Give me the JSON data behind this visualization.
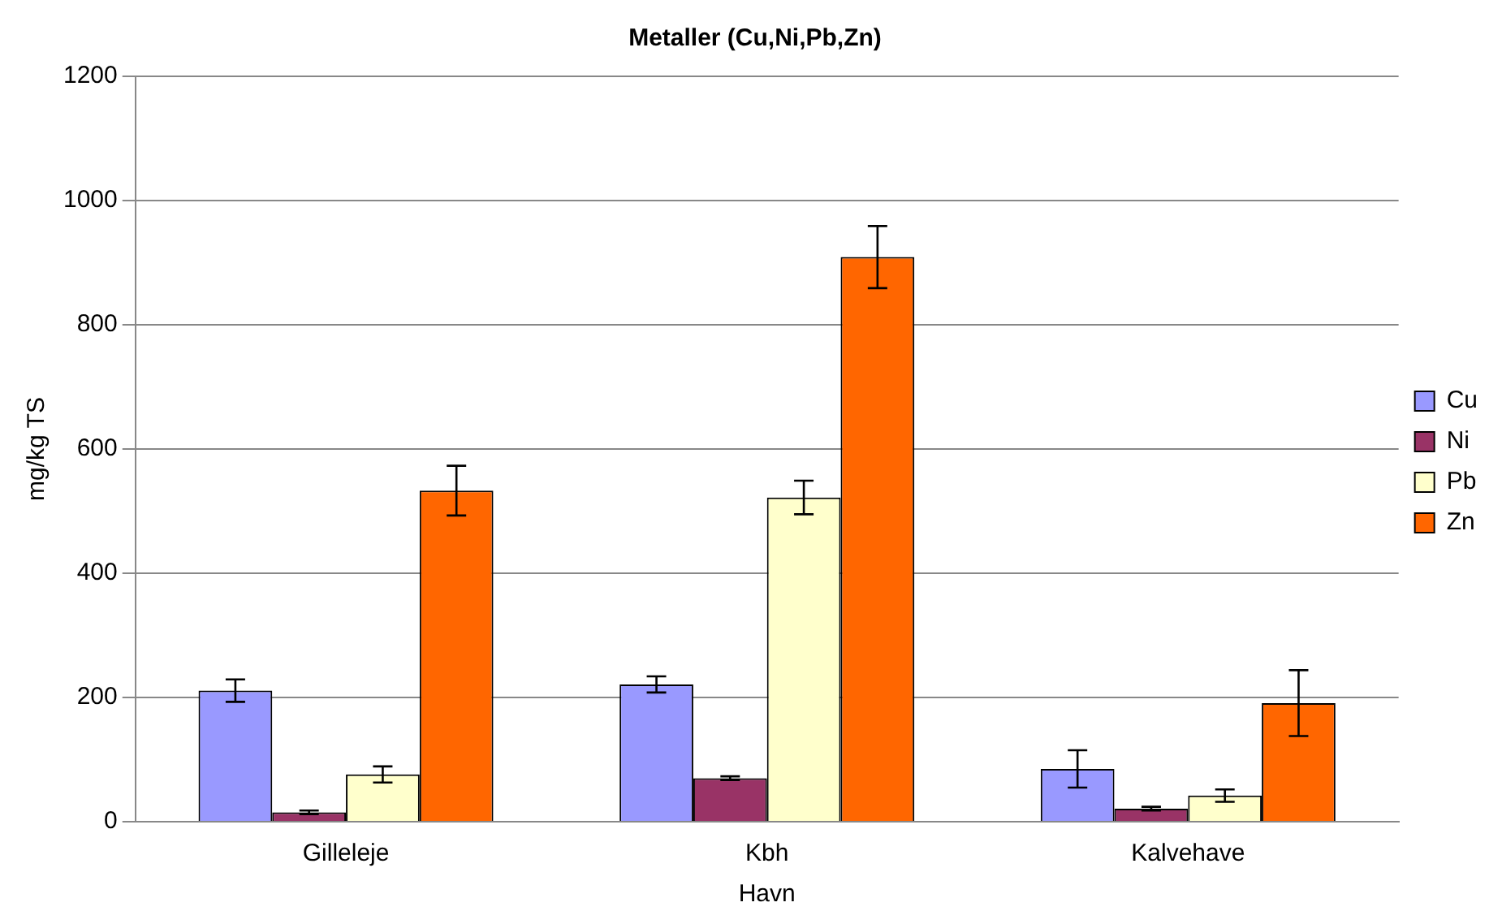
{
  "chart_data": {
    "type": "bar",
    "title": "Metaller (Cu,Ni,Pb,Zn)",
    "xlabel": "Havn",
    "ylabel": "mg/kg TS",
    "categories": [
      "Gilleleje",
      "Kbh",
      "Kalvehave"
    ],
    "series": [
      {
        "name": "Cu",
        "color": "#9999ff",
        "values": [
          211,
          221,
          85
        ],
        "errors": [
          18,
          13,
          30
        ]
      },
      {
        "name": "Ni",
        "color": "#993366",
        "values": [
          15,
          70,
          21
        ],
        "errors": [
          3,
          3,
          3
        ]
      },
      {
        "name": "Pb",
        "color": "#ffffcc",
        "values": [
          76,
          522,
          42
        ],
        "errors": [
          13,
          27,
          10
        ]
      },
      {
        "name": "Zn",
        "color": "#ff6600",
        "values": [
          533,
          909,
          191
        ],
        "errors": [
          40,
          50,
          53
        ]
      }
    ],
    "ylim": [
      0,
      1200
    ],
    "yticks": [
      0,
      200,
      400,
      600,
      800,
      1000,
      1200
    ],
    "grid": "y",
    "legend": "right"
  }
}
